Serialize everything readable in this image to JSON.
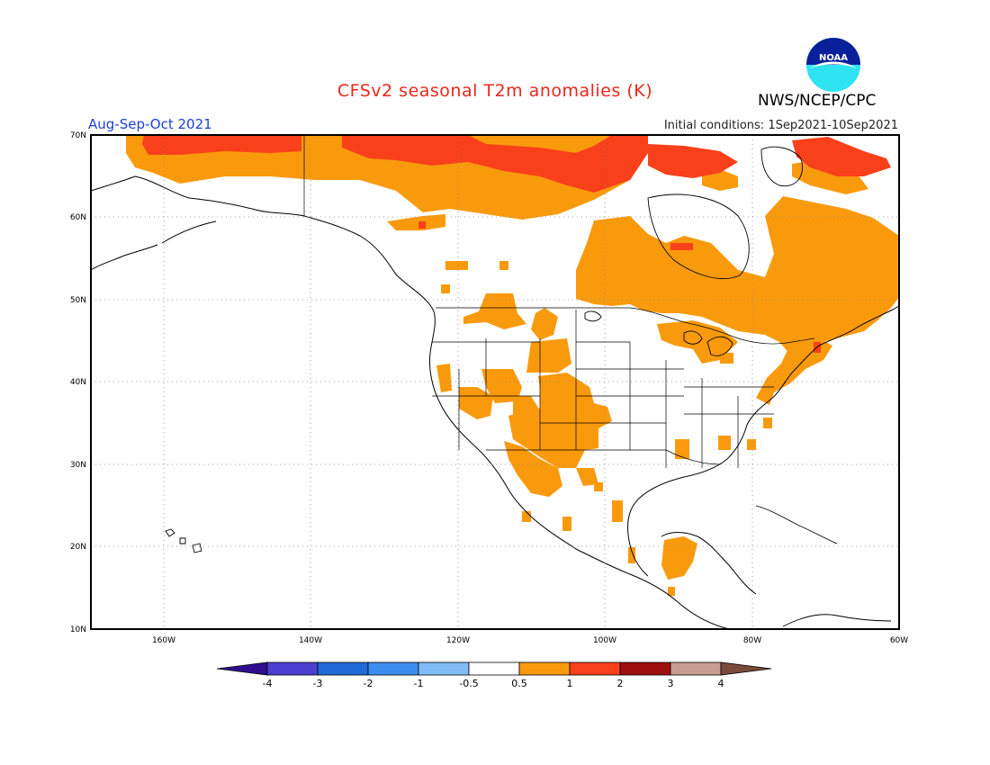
{
  "header": {
    "title": "CFSv2 seasonal T2m anomalies (K)",
    "agency": "NWS/NCEP/CPC",
    "season": "Aug-Sep-Oct 2021",
    "initial_conditions": "Initial conditions: 1Sep2021-10Sep2021",
    "logo_text": "NOAA"
  },
  "map": {
    "lat_labels": [
      "70N",
      "60N",
      "50N",
      "40N",
      "30N",
      "20N",
      "10N"
    ],
    "lon_labels": [
      "160W",
      "140W",
      "120W",
      "100W",
      "80W",
      "60W"
    ],
    "region": "North America",
    "lat_range": [
      10,
      70
    ],
    "lon_range": [
      -172,
      -60
    ]
  },
  "colorbar": {
    "labels": [
      "-4",
      "-3",
      "-2",
      "-1",
      "-0.5",
      "0.5",
      "1",
      "2",
      "3",
      "4"
    ],
    "colors": [
      "#2f0f8f",
      "#4b3fd0",
      "#1f6ad6",
      "#3b8ef0",
      "#80bdf6",
      "#ffffff",
      "#f99a0d",
      "#f8401a",
      "#a00f0f",
      "#c69d8e",
      "#7a4b3a"
    ]
  },
  "anomaly_colors": {
    "warm_0_5_to_1": "#f99a0d",
    "warm_1_to_2": "#f8401a"
  }
}
